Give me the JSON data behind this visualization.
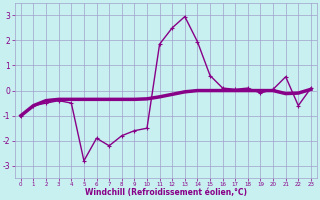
{
  "xlabel": "Windchill (Refroidissement éolien,°C)",
  "x": [
    0,
    1,
    2,
    3,
    4,
    5,
    6,
    7,
    8,
    9,
    10,
    11,
    12,
    13,
    14,
    15,
    16,
    17,
    18,
    19,
    20,
    21,
    22,
    23
  ],
  "y_line1": [
    -1.0,
    -0.6,
    -0.5,
    -0.4,
    -0.5,
    -2.8,
    -1.9,
    -2.2,
    -1.8,
    -1.6,
    -1.5,
    1.85,
    2.5,
    2.95,
    1.95,
    0.6,
    0.1,
    0.05,
    0.1,
    -0.1,
    0.05,
    0.55,
    -0.6,
    0.1
  ],
  "y_line2": [
    -1.0,
    -0.6,
    -0.4,
    -0.35,
    -0.35,
    -0.35,
    -0.35,
    -0.35,
    -0.35,
    -0.35,
    -0.33,
    -0.25,
    -0.15,
    -0.05,
    0.0,
    0.0,
    0.0,
    0.0,
    0.0,
    0.0,
    0.0,
    -0.12,
    -0.1,
    0.05
  ],
  "line_color": "#880088",
  "bg_color": "#c8f0f0",
  "grid_color": "#a0a0cc",
  "ylim": [
    -3.5,
    3.5
  ],
  "xlim": [
    -0.5,
    23.5
  ],
  "yticks": [
    -3,
    -2,
    -1,
    0,
    1,
    2,
    3
  ],
  "xticks": [
    0,
    1,
    2,
    3,
    4,
    5,
    6,
    7,
    8,
    9,
    10,
    11,
    12,
    13,
    14,
    15,
    16,
    17,
    18,
    19,
    20,
    21,
    22,
    23
  ]
}
